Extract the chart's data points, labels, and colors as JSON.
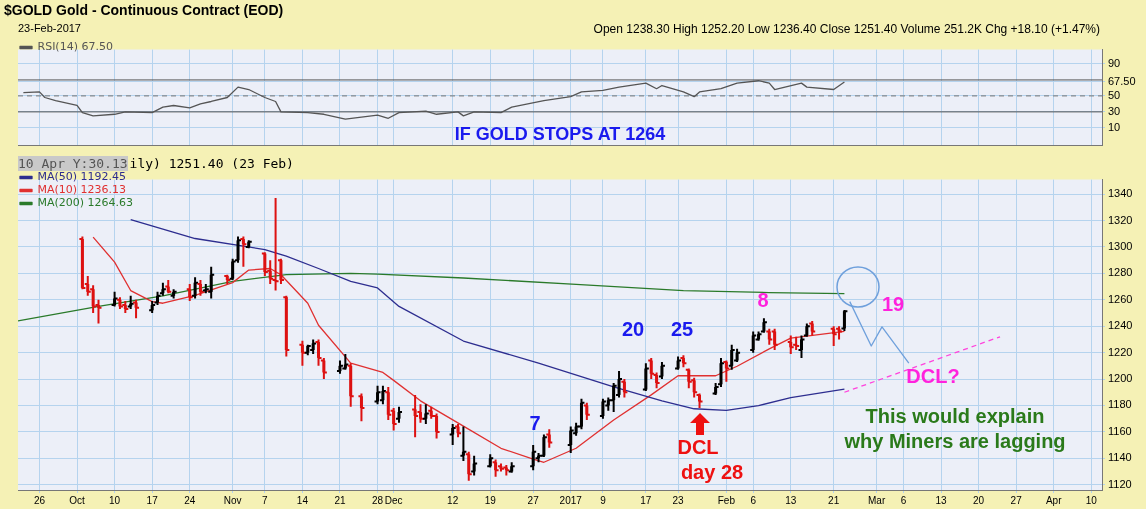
{
  "chart_data": [
    {
      "type": "line",
      "title": "$GOLD Gold - Continuous Contract (EOD)",
      "subtitle": "23-Feb-2017",
      "annotations": [
        "Open 1238.30 High 1252.20 Low 1236.40 Close 1251.40 Volume 251.2K Chg +18.10 (+1.47%)",
        "IF GOLD STOPS AT 1264"
      ],
      "series": [
        {
          "name": "RSI(14) 67.50",
          "color": "#555555",
          "x": [
            "2016-09-23",
            "2016-09-26",
            "2016-09-27",
            "2016-09-29",
            "2016-10-03",
            "2016-10-04",
            "2016-10-06",
            "2016-10-10",
            "2016-10-12",
            "2016-10-17",
            "2016-10-19",
            "2016-10-21",
            "2016-10-24",
            "2016-10-26",
            "2016-10-28",
            "2016-10-31",
            "2016-11-02",
            "2016-11-04",
            "2016-11-07",
            "2016-11-09",
            "2016-11-10",
            "2016-11-15",
            "2016-11-18",
            "2016-11-22",
            "2016-11-28",
            "2016-11-30",
            "2016-12-02",
            "2016-12-07",
            "2016-12-09",
            "2016-12-13",
            "2016-12-14",
            "2016-12-16",
            "2016-12-21",
            "2016-12-23",
            "2016-12-29",
            "2017-01-03",
            "2017-01-05",
            "2017-01-09",
            "2017-01-12",
            "2017-01-17",
            "2017-01-19",
            "2017-01-20",
            "2017-01-24",
            "2017-01-26",
            "2017-01-27",
            "2017-01-31",
            "2017-02-03",
            "2017-02-07",
            "2017-02-09",
            "2017-02-10",
            "2017-02-15",
            "2017-02-16",
            "2017-02-21",
            "2017-02-23"
          ],
          "values": [
            54,
            55,
            48,
            44,
            38,
            29,
            25,
            27,
            30,
            29,
            36,
            38,
            35,
            40,
            43,
            48,
            61,
            58,
            48,
            43,
            30,
            29,
            27,
            21,
            26,
            22,
            29,
            31,
            27,
            30,
            25,
            30,
            29,
            36,
            44,
            49,
            55,
            57,
            61,
            66,
            59,
            63,
            55,
            49,
            55,
            59,
            66,
            69,
            66,
            58,
            66,
            61,
            58,
            67.5
          ]
        }
      ],
      "xlim": [
        "2016-09-22",
        "2017-04-12"
      ],
      "xticks": [
        {
          "value": "2016-09-26",
          "label": null
        },
        {
          "value": "2016-10-03",
          "label": null
        },
        {
          "value": "2016-10-10",
          "label": null
        },
        {
          "value": "2016-10-17",
          "label": null
        },
        {
          "value": "2016-10-24",
          "label": null
        },
        {
          "value": "2016-11-01",
          "label": null
        },
        {
          "value": "2016-11-07",
          "label": null
        },
        {
          "value": "2016-11-14",
          "label": null
        },
        {
          "value": "2016-11-21",
          "label": null
        },
        {
          "value": "2016-11-28",
          "label": null
        },
        {
          "value": "2016-12-01",
          "label": null
        },
        {
          "value": "2016-12-12",
          "label": null
        },
        {
          "value": "2016-12-19",
          "label": null
        },
        {
          "value": "2016-12-27",
          "label": null
        },
        {
          "value": "2017-01-03",
          "label": null
        },
        {
          "value": "2017-01-09",
          "label": null
        },
        {
          "value": "2017-01-17",
          "label": null
        },
        {
          "value": "2017-01-23",
          "label": null
        },
        {
          "value": "2017-02-01",
          "label": null
        },
        {
          "value": "2017-02-06",
          "label": null
        },
        {
          "value": "2017-02-13",
          "label": null
        },
        {
          "value": "2017-02-21",
          "label": null
        },
        {
          "value": "2017-03-01",
          "label": null
        },
        {
          "value": "2017-03-06",
          "label": null
        },
        {
          "value": "2017-03-13",
          "label": null
        },
        {
          "value": "2017-03-20",
          "label": null
        },
        {
          "value": "2017-03-27",
          "label": null
        },
        {
          "value": "2017-04-03",
          "label": null
        },
        {
          "value": "2017-04-10",
          "label": null
        }
      ],
      "ylim": [
        -12,
        108
      ],
      "yticks": [
        10,
        30,
        50,
        {
          "value": 67.5,
          "label": "67.50"
        },
        90
      ],
      "ref_lines": [
        {
          "axis": "y",
          "value": 70,
          "color": "#555555"
        },
        {
          "axis": "y",
          "value": 50,
          "color": "#777777",
          "line_style": "dashed"
        },
        {
          "axis": "y",
          "value": 30,
          "color": "#555555"
        }
      ],
      "grid": true,
      "legend": "top left",
      "tick_labels": "y",
      "marker": "none"
    },
    {
      "type": "candlestick",
      "x": [
        "2016-10-04",
        "2016-10-05",
        "2016-10-06",
        "2016-10-07",
        "2016-10-10",
        "2016-10-11",
        "2016-10-12",
        "2016-10-13",
        "2016-10-14",
        "2016-10-17",
        "2016-10-18",
        "2016-10-19",
        "2016-10-20",
        "2016-10-21",
        "2016-10-24",
        "2016-10-25",
        "2016-10-26",
        "2016-10-27",
        "2016-10-28",
        "2016-10-31",
        "2016-11-01",
        "2016-11-02",
        "2016-11-03",
        "2016-11-04",
        "2016-11-07",
        "2016-11-08",
        "2016-11-09",
        "2016-11-10",
        "2016-11-11",
        "2016-11-14",
        "2016-11-15",
        "2016-11-16",
        "2016-11-17",
        "2016-11-18",
        "2016-11-21",
        "2016-11-22",
        "2016-11-23",
        "2016-11-25",
        "2016-11-28",
        "2016-11-29",
        "2016-11-30",
        "2016-12-01",
        "2016-12-02",
        "2016-12-05",
        "2016-12-06",
        "2016-12-07",
        "2016-12-08",
        "2016-12-09",
        "2016-12-12",
        "2016-12-13",
        "2016-12-14",
        "2016-12-15",
        "2016-12-16",
        "2016-12-19",
        "2016-12-20",
        "2016-12-21",
        "2016-12-22",
        "2016-12-23",
        "2016-12-27",
        "2016-12-28",
        "2016-12-29",
        "2016-12-30",
        "2017-01-03",
        "2017-01-04",
        "2017-01-05",
        "2017-01-06",
        "2017-01-09",
        "2017-01-10",
        "2017-01-11",
        "2017-01-12",
        "2017-01-13",
        "2017-01-17",
        "2017-01-18",
        "2017-01-19",
        "2017-01-20",
        "2017-01-23",
        "2017-01-24",
        "2017-01-25",
        "2017-01-26",
        "2017-01-27",
        "2017-01-30",
        "2017-01-31",
        "2017-02-01",
        "2017-02-02",
        "2017-02-03",
        "2017-02-06",
        "2017-02-07",
        "2017-02-08",
        "2017-02-09",
        "2017-02-10",
        "2017-02-13",
        "2017-02-14",
        "2017-02-15",
        "2017-02-16",
        "2017-02-17",
        "2017-02-21",
        "2017-02-22",
        "2017-02-23"
      ],
      "ohlc": [
        [
          1306,
          1308,
          1268,
          1269
        ],
        [
          1272,
          1278,
          1263,
          1266
        ],
        [
          1268,
          1271,
          1250,
          1255
        ],
        [
          1256,
          1260,
          1242,
          1254
        ],
        [
          1256,
          1266,
          1255,
          1261
        ],
        [
          1260,
          1262,
          1253,
          1255
        ],
        [
          1256,
          1259,
          1250,
          1253
        ],
        [
          1255,
          1263,
          1253,
          1257
        ],
        [
          1258,
          1260,
          1246,
          1254
        ],
        [
          1252,
          1259,
          1250,
          1256
        ],
        [
          1258,
          1266,
          1256,
          1263
        ],
        [
          1265,
          1273,
          1263,
          1268
        ],
        [
          1270,
          1275,
          1265,
          1266
        ],
        [
          1263,
          1268,
          1261,
          1266
        ],
        [
          1268,
          1272,
          1259,
          1262
        ],
        [
          1263,
          1277,
          1261,
          1273
        ],
        [
          1272,
          1275,
          1263,
          1266
        ],
        [
          1267,
          1272,
          1265,
          1268
        ],
        [
          1266,
          1285,
          1261,
          1279
        ],
        [
          1278,
          1279,
          1272,
          1275
        ],
        [
          1276,
          1291,
          1275,
          1289
        ],
        [
          1290,
          1308,
          1288,
          1305
        ],
        [
          1306,
          1308,
          1285,
          1302
        ],
        [
          1300,
          1305,
          1299,
          1304
        ],
        [
          1295,
          1296,
          1278,
          1281
        ],
        [
          1282,
          1290,
          1272,
          1276
        ],
        [
          1275,
          1337,
          1267,
          1274
        ],
        [
          1290,
          1291,
          1272,
          1275
        ],
        [
          1262,
          1263,
          1217,
          1222
        ],
        [
          1226,
          1229,
          1210,
          1220
        ],
        [
          1220,
          1226,
          1218,
          1225
        ],
        [
          1222,
          1230,
          1219,
          1227
        ],
        [
          1228,
          1230,
          1210,
          1216
        ],
        [
          1214,
          1216,
          1200,
          1205
        ],
        [
          1206,
          1214,
          1204,
          1210
        ],
        [
          1208,
          1219,
          1207,
          1211
        ],
        [
          1210,
          1212,
          1179,
          1187
        ],
        [
          1187,
          1189,
          1168,
          1178
        ],
        [
          1183,
          1195,
          1181,
          1190
        ],
        [
          1184,
          1195,
          1181,
          1191
        ],
        [
          1190,
          1194,
          1169,
          1173
        ],
        [
          1176,
          1178,
          1161,
          1166
        ],
        [
          1170,
          1179,
          1167,
          1175
        ],
        [
          1177,
          1188,
          1156,
          1172
        ],
        [
          1175,
          1181,
          1167,
          1170
        ],
        [
          1170,
          1181,
          1166,
          1174
        ],
        [
          1176,
          1179,
          1170,
          1172
        ],
        [
          1172,
          1174,
          1155,
          1160
        ],
        [
          1158,
          1166,
          1150,
          1163
        ],
        [
          1164,
          1166,
          1156,
          1159
        ],
        [
          1142,
          1164,
          1138,
          1145
        ],
        [
          1143,
          1145,
          1123,
          1128
        ],
        [
          1130,
          1142,
          1127,
          1136
        ],
        [
          1134,
          1143,
          1133,
          1140
        ],
        [
          1137,
          1139,
          1126,
          1131
        ],
        [
          1134,
          1136,
          1130,
          1132
        ],
        [
          1133,
          1135,
          1127,
          1131
        ],
        [
          1130,
          1137,
          1129,
          1134
        ],
        [
          1134,
          1150,
          1131,
          1145
        ],
        [
          1140,
          1144,
          1137,
          1142
        ],
        [
          1142,
          1158,
          1141,
          1156
        ],
        [
          1158,
          1162,
          1148,
          1152
        ],
        [
          1150,
          1164,
          1144,
          1161
        ],
        [
          1159,
          1167,
          1157,
          1164
        ],
        [
          1164,
          1185,
          1162,
          1182
        ],
        [
          1180,
          1182,
          1169,
          1173
        ],
        [
          1172,
          1185,
          1170,
          1183
        ],
        [
          1180,
          1186,
          1176,
          1184
        ],
        [
          1184,
          1197,
          1175,
          1195
        ],
        [
          1188,
          1206,
          1186,
          1200
        ],
        [
          1198,
          1200,
          1186,
          1190
        ],
        [
          1192,
          1212,
          1191,
          1208
        ],
        [
          1214,
          1216,
          1200,
          1204
        ],
        [
          1203,
          1205,
          1193,
          1197
        ],
        [
          1202,
          1213,
          1200,
          1210
        ],
        [
          1208,
          1217,
          1207,
          1214
        ],
        [
          1216,
          1218,
          1209,
          1212
        ],
        [
          1207,
          1208,
          1193,
          1198
        ],
        [
          1199,
          1201,
          1186,
          1190
        ],
        [
          1188,
          1189,
          1178,
          1183
        ],
        [
          1189,
          1197,
          1188,
          1194
        ],
        [
          1196,
          1216,
          1194,
          1212
        ],
        [
          1213,
          1214,
          1198,
          1208
        ],
        [
          1210,
          1226,
          1207,
          1222
        ],
        [
          1214,
          1223,
          1213,
          1220
        ],
        [
          1222,
          1236,
          1220,
          1233
        ],
        [
          1230,
          1236,
          1229,
          1234
        ],
        [
          1236,
          1246,
          1235,
          1243
        ],
        [
          1236,
          1238,
          1226,
          1230
        ],
        [
          1236,
          1238,
          1222,
          1226
        ],
        [
          1228,
          1233,
          1219,
          1224
        ],
        [
          1226,
          1232,
          1222,
          1225
        ],
        [
          1222,
          1233,
          1216,
          1230
        ],
        [
          1233,
          1242,
          1232,
          1240
        ],
        [
          1242,
          1244,
          1233,
          1236
        ],
        [
          1238,
          1240,
          1225,
          1234
        ],
        [
          1238,
          1240,
          1230,
          1236
        ],
        [
          1238.3,
          1252.2,
          1236.4,
          1251.4
        ]
      ],
      "colors": [
        "#dd1111",
        "#dd1111",
        "#dd1111",
        "#dd1111",
        "#000000",
        "#dd1111",
        "#dd1111",
        "#000000",
        "#dd1111",
        "#000000",
        "#000000",
        "#000000",
        "#dd1111",
        "#000000",
        "#dd1111",
        "#000000",
        "#dd1111",
        "#000000",
        "#000000",
        "#dd1111",
        "#000000",
        "#000000",
        "#dd1111",
        "#000000",
        "#dd1111",
        "#dd1111",
        "#dd1111",
        "#dd1111",
        "#dd1111",
        "#dd1111",
        "#000000",
        "#000000",
        "#dd1111",
        "#dd1111",
        "#000000",
        "#000000",
        "#dd1111",
        "#dd1111",
        "#000000",
        "#000000",
        "#dd1111",
        "#dd1111",
        "#000000",
        "#dd1111",
        "#dd1111",
        "#000000",
        "#dd1111",
        "#dd1111",
        "#000000",
        "#dd1111",
        "#000000",
        "#dd1111",
        "#000000",
        "#000000",
        "#dd1111",
        "#dd1111",
        "#dd1111",
        "#000000",
        "#000000",
        "#000000",
        "#000000",
        "#dd1111",
        "#000000",
        "#000000",
        "#000000",
        "#dd1111",
        "#000000",
        "#000000",
        "#000000",
        "#000000",
        "#dd1111",
        "#000000",
        "#dd1111",
        "#dd1111",
        "#000000",
        "#000000",
        "#dd1111",
        "#dd1111",
        "#dd1111",
        "#dd1111",
        "#000000",
        "#000000",
        "#dd1111",
        "#000000",
        "#000000",
        "#000000",
        "#000000",
        "#000000",
        "#dd1111",
        "#dd1111",
        "#dd1111",
        "#dd1111",
        "#000000",
        "#000000",
        "#dd1111",
        "#dd1111",
        "#dd1111",
        "#000000"
      ],
      "series": [
        {
          "name": "MA(50) 1192.45",
          "type": "line",
          "color": "#2d2d8f",
          "x": [
            "2016-10-13",
            "2016-10-25",
            "2016-11-07",
            "2016-11-11",
            "2016-11-17",
            "2016-11-23",
            "2016-11-28",
            "2016-12-02",
            "2016-12-14",
            "2016-12-28",
            "2017-01-11",
            "2017-01-20",
            "2017-01-26",
            "2017-02-01",
            "2017-02-07",
            "2017-02-13",
            "2017-02-23"
          ],
          "values": [
            1320.7,
            1306.4,
            1298,
            1293,
            1283.7,
            1274,
            1269,
            1255,
            1228.8,
            1212,
            1194,
            1183.5,
            1177.5,
            1176.3,
            1179.9,
            1186,
            1192.45
          ]
        },
        {
          "name": "MA(10) 1236.13",
          "type": "line",
          "color": "#e03030",
          "x": [
            "2016-10-06",
            "2016-10-10",
            "2016-10-13",
            "2016-10-17",
            "2016-10-19",
            "2016-10-25",
            "2016-11-01",
            "2016-11-04",
            "2016-11-08",
            "2016-11-10",
            "2016-11-15",
            "2016-11-17",
            "2016-11-23",
            "2016-11-29",
            "2016-12-01",
            "2016-12-06",
            "2016-12-14",
            "2016-12-21",
            "2016-12-27",
            "2016-12-29",
            "2017-01-04",
            "2017-01-11",
            "2017-01-18",
            "2017-01-23",
            "2017-01-26",
            "2017-01-30",
            "2017-02-03",
            "2017-02-09",
            "2017-02-13",
            "2017-02-23"
          ],
          "values": [
            1307.5,
            1288.5,
            1267,
            1258.6,
            1257.4,
            1263.4,
            1273,
            1282.5,
            1283.7,
            1279,
            1257.4,
            1240.7,
            1212,
            1205,
            1199,
            1183.5,
            1164.4,
            1147.6,
            1139.3,
            1137,
            1147.6,
            1169,
            1188,
            1202.5,
            1202.5,
            1202.5,
            1209.7,
            1222.8,
            1231,
            1236.13
          ]
        },
        {
          "name": "MA(200) 1264.63",
          "type": "line",
          "color": "#2a7a2a",
          "x": [
            "2016-09-22",
            "2016-10-07",
            "2016-10-19",
            "2016-11-01",
            "2016-11-11",
            "2016-11-23",
            "2016-11-28",
            "2016-12-14",
            "2017-01-04",
            "2017-01-24",
            "2017-02-09",
            "2017-02-23"
          ],
          "values": [
            1244,
            1255,
            1263,
            1274,
            1279,
            1280,
            1279.5,
            1276.5,
            1271.7,
            1267,
            1265.5,
            1264.63
          ]
        },
        {
          "type": "line",
          "color": "#6fa0dc",
          "x": [
            "2017-02-24",
            "2017-02-28",
            "2017-03-02",
            "2017-03-07"
          ],
          "values": [
            1258.6,
            1225,
            1239.5,
            1212
          ]
        },
        {
          "type": "line",
          "color": "#ff44dd",
          "line_style": "dashed",
          "x": [
            "2017-02-23",
            "2017-03-24"
          ],
          "values": [
            1190,
            1232
          ]
        }
      ],
      "annotations": [
        "10 Apr Y:30.13",
        "ily) 1251.40 (23 Feb)",
        "7",
        "20",
        "25",
        "8",
        "19",
        "DCL",
        "day 28",
        "DCL?",
        "This would explain\nwhy Miners are lagging"
      ],
      "xlim": [
        "2016-09-22",
        "2017-04-12"
      ],
      "xticks": [
        {
          "value": "2016-09-26",
          "label": "26"
        },
        {
          "value": "2016-10-03",
          "label": "Oct"
        },
        {
          "value": "2016-10-10",
          "label": "10"
        },
        {
          "value": "2016-10-17",
          "label": "17"
        },
        {
          "value": "2016-10-24",
          "label": "24"
        },
        {
          "value": "2016-11-01",
          "label": "Nov"
        },
        {
          "value": "2016-11-07",
          "label": "7"
        },
        {
          "value": "2016-11-14",
          "label": "14"
        },
        {
          "value": "2016-11-21",
          "label": "21"
        },
        {
          "value": "2016-11-28",
          "label": "28"
        },
        {
          "value": "2016-12-01",
          "label": "Dec"
        },
        {
          "value": "2016-12-12",
          "label": "12"
        },
        {
          "value": "2016-12-19",
          "label": "19"
        },
        {
          "value": "2016-12-27",
          "label": "27"
        },
        {
          "value": "2017-01-03",
          "label": "2017"
        },
        {
          "value": "2017-01-09",
          "label": "9"
        },
        {
          "value": "2017-01-17",
          "label": "17"
        },
        {
          "value": "2017-01-23",
          "label": "23"
        },
        {
          "value": "2017-02-01",
          "label": "Feb"
        },
        {
          "value": "2017-02-06",
          "label": "6"
        },
        {
          "value": "2017-02-13",
          "label": "13"
        },
        {
          "value": "2017-02-21",
          "label": "21"
        },
        {
          "value": "2017-03-01",
          "label": "Mar"
        },
        {
          "value": "2017-03-06",
          "label": "6"
        },
        {
          "value": "2017-03-13",
          "label": "13"
        },
        {
          "value": "2017-03-20",
          "label": "20"
        },
        {
          "value": "2017-03-27",
          "label": "27"
        },
        {
          "value": "2017-04-03",
          "label": "Apr"
        },
        {
          "value": "2017-04-10",
          "label": "10"
        }
      ],
      "ylim": [
        1116,
        1351
      ],
      "yticks": [
        1120,
        1140,
        1160,
        1180,
        1200,
        1220,
        1240,
        1260,
        1280,
        1300,
        1320,
        1340
      ],
      "grid": true,
      "legend": "top left",
      "marker": "none"
    }
  ]
}
